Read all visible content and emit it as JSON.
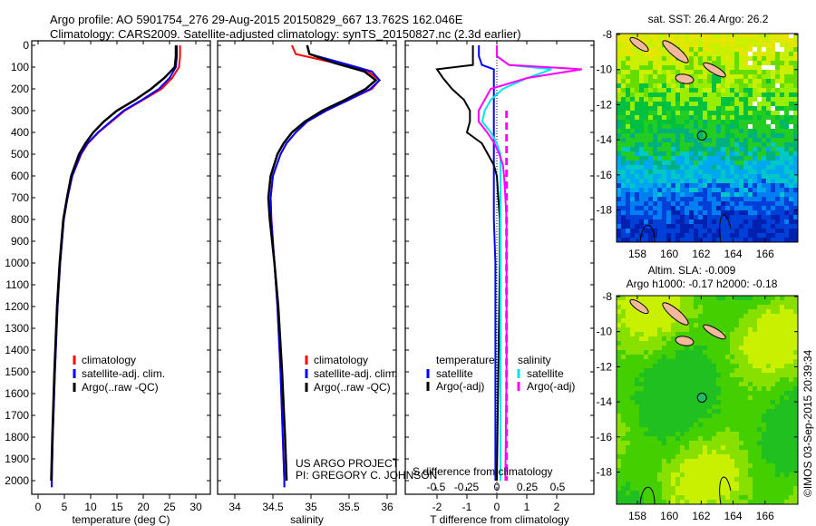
{
  "title": {
    "line1": "Argo profile: AO 5901754_276 29-Aug-2015 20150829_667 13.762S 162.046E",
    "line2": "Climatology: CARS2009. Satellite-adjusted climatology: synTS_20150827.nc (2.3d earlier)"
  },
  "credit": {
    "line1": "US ARGO PROJECT",
    "line2": "PI: GREGORY C. JOHNSON"
  },
  "timestamp": "©IMOS 03-Sep-2015 20:39:34",
  "colors": {
    "climatology": "#ff0000",
    "satellite": "#0000ff",
    "argo": "#000000",
    "sal_sat": "#00e5ee",
    "sal_argo": "#ff00ff"
  },
  "chart_data": [
    {
      "type": "line",
      "name": "temperature-profile",
      "xlabel": "temperature (deg C)",
      "ylabel": "",
      "xlim": [
        -1,
        31
      ],
      "ylim": [
        2060,
        0
      ],
      "xticks": [
        "0",
        "5",
        "10",
        "15",
        "20",
        "25",
        "30"
      ],
      "yticks": [
        "0",
        "100",
        "200",
        "300",
        "400",
        "500",
        "600",
        "700",
        "800",
        "900",
        "1000",
        "1100",
        "1200",
        "1300",
        "1400",
        "1500",
        "1600",
        "1700",
        "1800",
        "1900",
        "2000"
      ],
      "legend": [
        "climatology",
        "satellite-adj. clim.",
        "Argo(..raw -QC)"
      ],
      "depth": [
        0,
        50,
        100,
        150,
        200,
        250,
        300,
        350,
        400,
        450,
        500,
        600,
        700,
        800,
        1000,
        1200,
        1500,
        1800,
        2000,
        2030
      ],
      "series": [
        {
          "name": "climatology",
          "values": [
            27.0,
            27.0,
            26.8,
            25.5,
            23.5,
            20,
            16.5,
            14.0,
            11.5,
            9.5,
            8.2,
            6.5,
            5.6,
            4.9,
            4.2,
            3.7,
            3.2,
            2.8,
            2.6,
            2.6
          ]
        },
        {
          "name": "satellite-adj. clim.",
          "values": [
            26.4,
            26.4,
            26.2,
            25.0,
            23.0,
            19.8,
            16.3,
            13.8,
            11.4,
            9.4,
            8.1,
            6.5,
            5.6,
            4.9,
            4.2,
            3.7,
            3.2,
            2.8,
            2.6,
            2.6
          ]
        },
        {
          "name": "Argo(..raw -QC)",
          "values": [
            26.2,
            26.2,
            26.0,
            24.0,
            21.5,
            18.5,
            15.0,
            12.5,
            10.5,
            9.0,
            7.8,
            6.3,
            5.5,
            4.8,
            4.1,
            3.6,
            3.1,
            2.7,
            2.5,
            null
          ]
        }
      ]
    },
    {
      "type": "line",
      "name": "salinity-profile",
      "xlabel": "salinity",
      "xlim": [
        33.8,
        36.2
      ],
      "ylim": [
        2060,
        0
      ],
      "xticks": [
        "34",
        "34.5",
        "35",
        "35.5",
        "36"
      ],
      "legend": [
        "climatology",
        "satellite-adj. clim.",
        "Argo(..raw -QC)"
      ],
      "depth": [
        0,
        40,
        80,
        120,
        160,
        200,
        250,
        300,
        350,
        400,
        450,
        500,
        600,
        700,
        800,
        1000,
        1200,
        1500,
        1800,
        2000,
        2030
      ],
      "series": [
        {
          "name": "climatology",
          "values": [
            34.75,
            34.8,
            35.3,
            35.75,
            35.9,
            35.8,
            35.5,
            35.2,
            34.95,
            34.8,
            34.68,
            34.6,
            34.5,
            34.47,
            34.48,
            34.52,
            34.56,
            34.6,
            34.63,
            34.65,
            34.65
          ]
        },
        {
          "name": "satellite-adj. clim.",
          "values": [
            34.95,
            34.98,
            35.4,
            35.8,
            35.9,
            35.78,
            35.5,
            35.2,
            34.95,
            34.8,
            34.68,
            34.6,
            34.5,
            34.47,
            34.48,
            34.52,
            34.56,
            34.6,
            34.63,
            34.65,
            34.65
          ]
        },
        {
          "name": "Argo(..raw -QC)",
          "values": [
            34.95,
            34.98,
            35.3,
            35.7,
            35.85,
            35.72,
            35.45,
            35.15,
            34.92,
            34.75,
            34.64,
            34.56,
            34.47,
            34.44,
            34.46,
            34.52,
            34.57,
            34.62,
            34.66,
            34.68,
            null
          ]
        }
      ]
    },
    {
      "type": "line",
      "name": "difference-profile",
      "xlabel": "T difference from climatology",
      "xlabel2": "S difference from climatology",
      "xlim": [
        -3,
        3
      ],
      "ylim": [
        2060,
        0
      ],
      "xticks": [
        "-2",
        "-1",
        "0",
        "1",
        "2"
      ],
      "xticks2": [
        "-0.5",
        "-0.25",
        "0",
        "0.25",
        "0.5"
      ],
      "legend_temperature": {
        "title": "temperature",
        "items": [
          "satellite",
          "Argo(-adj)"
        ]
      },
      "legend_salinity": {
        "title": "salinity",
        "items": [
          "satellite",
          "Argo(-adj)"
        ]
      },
      "depth": [
        0,
        50,
        90,
        110,
        150,
        200,
        250,
        300,
        350,
        400,
        450,
        500,
        550,
        600,
        700,
        800,
        1000,
        1500,
        2000
      ],
      "series": [
        {
          "name": "temperature satellite",
          "values": [
            -0.6,
            -0.6,
            -0.5,
            -0.1,
            -0.1,
            -0.1,
            -0.1,
            -0.1,
            -0.1,
            -0.1,
            -0.1,
            -0.1,
            -0.1,
            -0.1,
            -0.1,
            -0.1,
            -0.05,
            -0.05,
            -0.05
          ]
        },
        {
          "name": "temperature Argo(-adj)",
          "values": [
            -0.8,
            -0.8,
            -0.8,
            -2.0,
            -1.8,
            -1.5,
            -1.1,
            -0.9,
            -0.9,
            -1.0,
            -0.5,
            -0.3,
            -0.1,
            0.0,
            0.05,
            0.1,
            0.1,
            0.05,
            0.0
          ]
        },
        {
          "name": "salinity satellite",
          "values": [
            0.0,
            0.0,
            0.1,
            0.45,
            0.25,
            0.05,
            -0.05,
            -0.1,
            -0.12,
            -0.05,
            0.0,
            0.03,
            0.03,
            0.03,
            0.03,
            0.03,
            0.03,
            0.03,
            0.03
          ]
        },
        {
          "name": "salinity Argo(-adj)",
          "values": [
            0.0,
            0.0,
            0.1,
            0.7,
            0.25,
            -0.05,
            -0.1,
            -0.15,
            -0.15,
            -0.08,
            -0.02,
            0.02,
            0.05,
            0.06,
            0.07,
            0.08,
            0.08,
            0.08,
            0.07
          ]
        }
      ]
    },
    {
      "type": "heatmap",
      "name": "sst-map",
      "title": "sat. SST: 26.4 Argo: 26.2",
      "xticks": [
        "158",
        "160",
        "162",
        "164",
        "166"
      ],
      "yticks": [
        "-8",
        "-10",
        "-12",
        "-14",
        "-16",
        "-18"
      ],
      "marker": {
        "lon": 162.046,
        "lat": -13.762
      }
    },
    {
      "type": "heatmap",
      "name": "sla-map",
      "title": "Altim. SLA: -0.009",
      "subtitle": "Argo h1000: -0.17 h2000: -0.18",
      "xticks": [
        "158",
        "160",
        "162",
        "164",
        "166"
      ],
      "yticks": [
        "-8",
        "-10",
        "-12",
        "-14",
        "-16",
        "-18"
      ],
      "marker": {
        "lon": 162.046,
        "lat": -13.762
      }
    }
  ]
}
